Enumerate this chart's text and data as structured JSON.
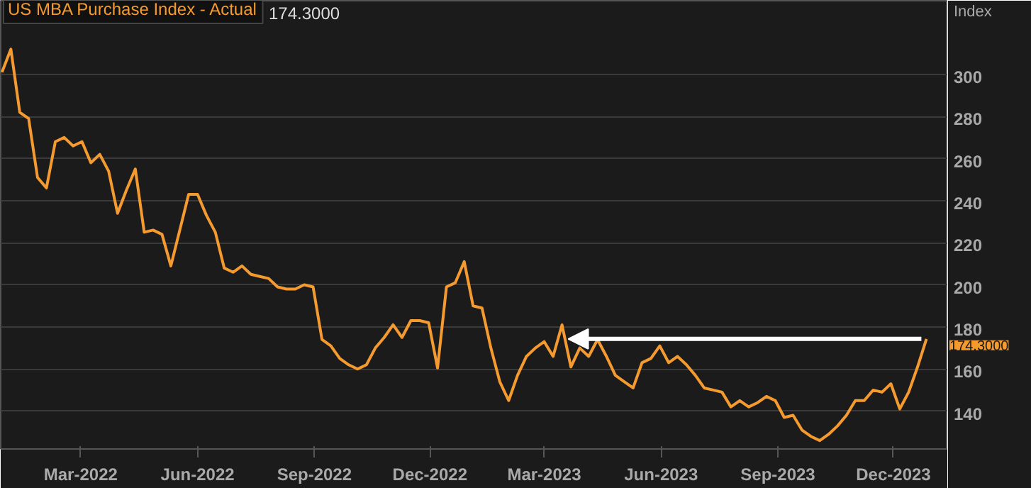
{
  "chart_data": {
    "type": "line",
    "title": "US MBA Purchase Index - Actual",
    "subtitle": "174.3000",
    "ylabel": "Index",
    "x": [
      "2021-12-29",
      "2022-01-05",
      "2022-01-12",
      "2022-01-19",
      "2022-01-26",
      "2022-02-02",
      "2022-02-09",
      "2022-02-16",
      "2022-02-23",
      "2022-03-02",
      "2022-03-09",
      "2022-03-16",
      "2022-03-23",
      "2022-03-30",
      "2022-04-06",
      "2022-04-13",
      "2022-04-20",
      "2022-04-27",
      "2022-05-04",
      "2022-05-11",
      "2022-05-18",
      "2022-05-25",
      "2022-06-01",
      "2022-06-08",
      "2022-06-15",
      "2022-06-22",
      "2022-06-29",
      "2022-07-06",
      "2022-07-13",
      "2022-07-20",
      "2022-07-27",
      "2022-08-03",
      "2022-08-10",
      "2022-08-17",
      "2022-08-24",
      "2022-08-31",
      "2022-09-07",
      "2022-09-14",
      "2022-09-21",
      "2022-09-28",
      "2022-10-05",
      "2022-10-12",
      "2022-10-19",
      "2022-10-26",
      "2022-11-02",
      "2022-11-09",
      "2022-11-16",
      "2022-11-23",
      "2022-11-30",
      "2022-12-07",
      "2022-12-14",
      "2022-12-21",
      "2022-12-28",
      "2023-01-04",
      "2023-01-11",
      "2023-01-18",
      "2023-01-25",
      "2023-02-01",
      "2023-02-08",
      "2023-02-15",
      "2023-02-22",
      "2023-03-01",
      "2023-03-08",
      "2023-03-15",
      "2023-03-22",
      "2023-03-29",
      "2023-04-05",
      "2023-04-12",
      "2023-04-19",
      "2023-04-26",
      "2023-05-03",
      "2023-05-10",
      "2023-05-17",
      "2023-05-24",
      "2023-05-31",
      "2023-06-07",
      "2023-06-14",
      "2023-06-21",
      "2023-06-28",
      "2023-07-05",
      "2023-07-12",
      "2023-07-19",
      "2023-07-26",
      "2023-08-02",
      "2023-08-09",
      "2023-08-16",
      "2023-08-23",
      "2023-08-30",
      "2023-09-06",
      "2023-09-13",
      "2023-09-20",
      "2023-09-27",
      "2023-10-04",
      "2023-10-11",
      "2023-10-18",
      "2023-10-25",
      "2023-11-01",
      "2023-11-08",
      "2023-11-15",
      "2023-11-22",
      "2023-11-29",
      "2023-12-06",
      "2023-12-13",
      "2023-12-20",
      "2023-12-27"
    ],
    "series": [
      {
        "color": "#f59a2f",
        "values": [
          301,
          312,
          282,
          279,
          251,
          246,
          268,
          270,
          266,
          268,
          258,
          262,
          254,
          234,
          245,
          255,
          225,
          226,
          224,
          209,
          226,
          243,
          243,
          233,
          225,
          208,
          206,
          209,
          205,
          204,
          203,
          199,
          198,
          198,
          200,
          199,
          174,
          171,
          165,
          162,
          160,
          162,
          170,
          175,
          181,
          175,
          183,
          183,
          182,
          160.5,
          199,
          201,
          211,
          190,
          189,
          170,
          154,
          145,
          157,
          166,
          170,
          173,
          166,
          181,
          161,
          170,
          166,
          174,
          166,
          157,
          154,
          151,
          163,
          165,
          171,
          163,
          166,
          162,
          157,
          151,
          150,
          149,
          142,
          145,
          142,
          144,
          147,
          145,
          137,
          138,
          131,
          128,
          126,
          129,
          133,
          138,
          145,
          145,
          150,
          149,
          153,
          141,
          149,
          161,
          174.3
        ]
      }
    ],
    "annotations": [
      {
        "text": "174.3000",
        "x": "2023-12-27",
        "y": 174.3
      }
    ],
    "xlim": [
      "2021-12-28",
      "2024-01-13"
    ],
    "xticks": [
      {
        "value": "2022-03-01",
        "label": "Mar-2022"
      },
      {
        "value": "2022-06-01",
        "label": "Jun-2022"
      },
      {
        "value": "2022-09-01",
        "label": "Sep-2022"
      },
      {
        "value": "2022-12-01",
        "label": "Dec-2022"
      },
      {
        "value": "2023-03-01",
        "label": "Mar-2023"
      },
      {
        "value": "2023-06-01",
        "label": "Jun-2023"
      },
      {
        "value": "2023-09-01",
        "label": "Sep-2023"
      },
      {
        "value": "2023-12-01",
        "label": "Dec-2023"
      }
    ],
    "ylim": [
      122,
      335
    ],
    "yticks": [
      140,
      160,
      180,
      200,
      220,
      240,
      260,
      280,
      300
    ],
    "grid": "y",
    "marker": "none",
    "line_style": "solid"
  }
}
